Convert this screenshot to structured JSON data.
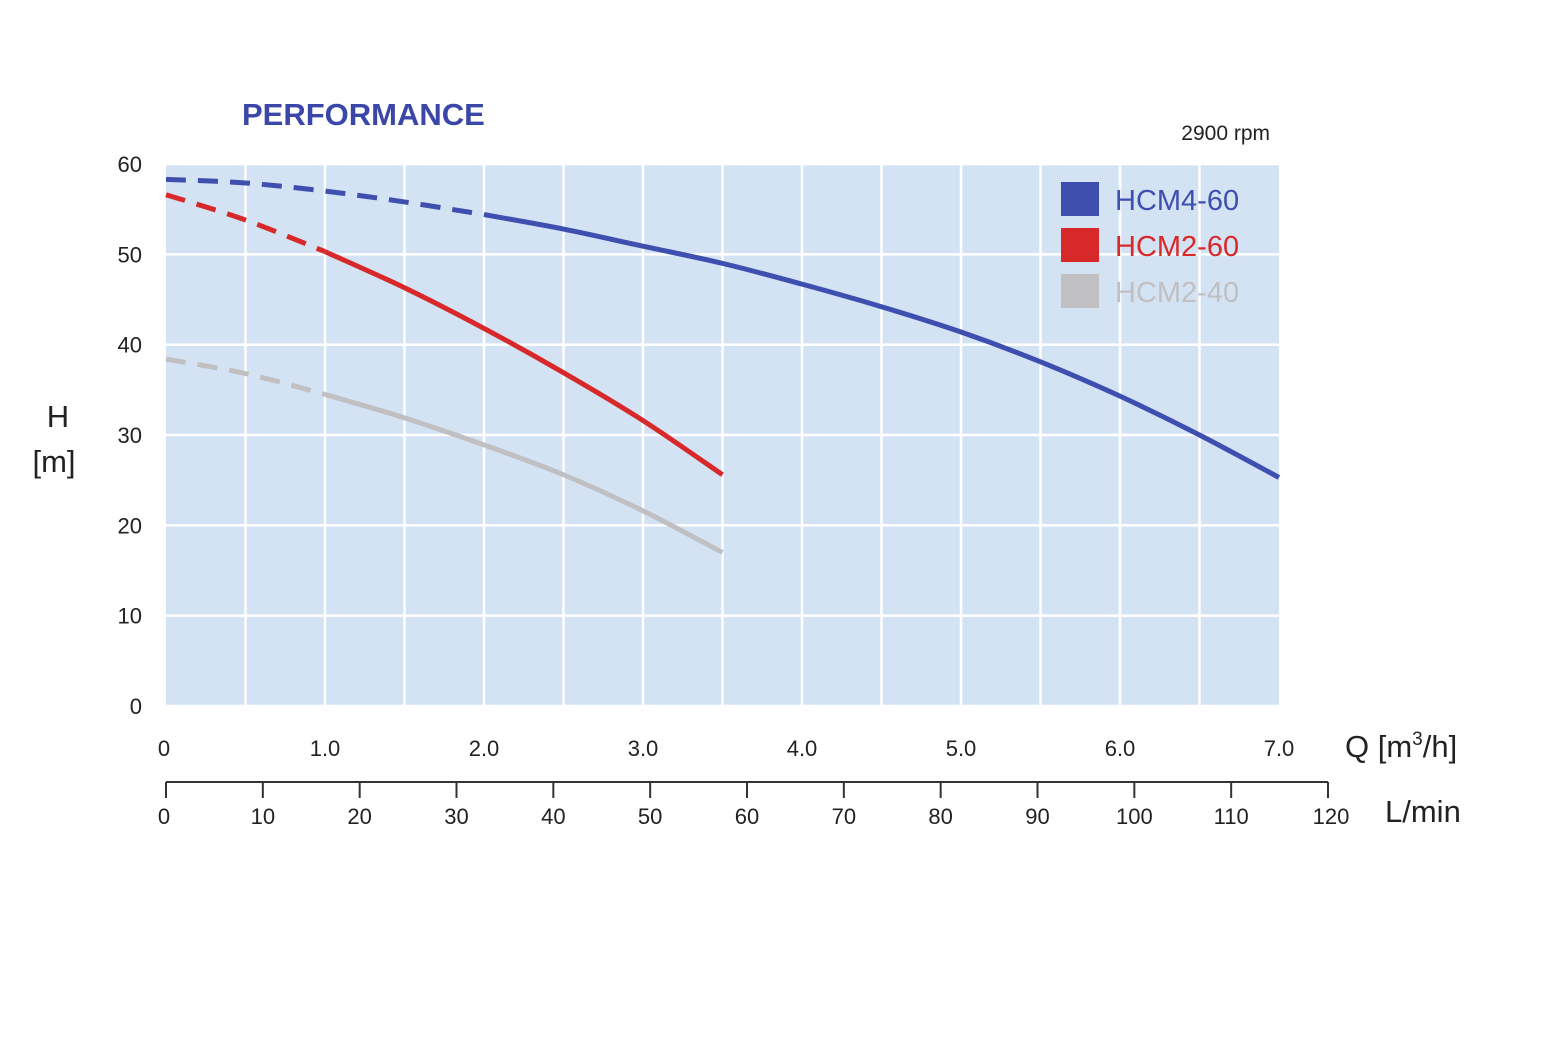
{
  "chart_data": {
    "type": "line",
    "title": "PERFORMANCE",
    "subtitle": "2900 rpm",
    "ylabel_line1": "H",
    "ylabel_line2": "[m]",
    "xlabel_base": "Q [m",
    "xlabel_sup": "3",
    "xlabel_end": "/h]",
    "x2label": "L/min",
    "xlim": [
      0,
      7
    ],
    "ylim": [
      0,
      60
    ],
    "grid": true,
    "legend_position": "top-right",
    "y_ticks": [
      "0",
      "10",
      "20",
      "30",
      "40",
      "50",
      "60"
    ],
    "x_ticks": [
      {
        "value": 0,
        "label": "0"
      },
      {
        "value": 1,
        "label": "1.0"
      },
      {
        "value": 2,
        "label": "2.0"
      },
      {
        "value": 3,
        "label": "3.0"
      },
      {
        "value": 4,
        "label": "4.0"
      },
      {
        "value": 5,
        "label": "5.0"
      },
      {
        "value": 6,
        "label": "6.0"
      },
      {
        "value": 7,
        "label": "7.0"
      }
    ],
    "x2_ticks": [
      "0",
      "10",
      "20",
      "30",
      "40",
      "50",
      "60",
      "70",
      "80",
      "90",
      "100",
      "110",
      "120"
    ],
    "colors": {
      "plot_bg": "#d3e3f3",
      "grid": "#ffffff",
      "title": "#3a46a8",
      "text": "#222222"
    },
    "series": [
      {
        "name": "HCM4-60",
        "color": "#3f4fb0",
        "dashed_until": 2.0,
        "points": [
          [
            0,
            58.3
          ],
          [
            0.5,
            57.9
          ],
          [
            1.0,
            57.0
          ],
          [
            1.5,
            55.8
          ],
          [
            2.0,
            54.4
          ],
          [
            2.5,
            52.8
          ],
          [
            3.0,
            50.9
          ],
          [
            3.5,
            49.0
          ],
          [
            4.0,
            46.7
          ],
          [
            4.5,
            44.2
          ],
          [
            5.0,
            41.4
          ],
          [
            5.5,
            38.1
          ],
          [
            6.0,
            34.3
          ],
          [
            6.5,
            30.0
          ],
          [
            7.0,
            25.3
          ]
        ]
      },
      {
        "name": "HCM2-60",
        "color": "#d8292a",
        "dashed_until": 1.0,
        "points": [
          [
            0,
            56.6
          ],
          [
            0.5,
            53.8
          ],
          [
            1.0,
            50.3
          ],
          [
            1.5,
            46.3
          ],
          [
            2.0,
            41.8
          ],
          [
            2.5,
            36.9
          ],
          [
            3.0,
            31.6
          ],
          [
            3.5,
            25.6
          ]
        ]
      },
      {
        "name": "HCM2-40",
        "color": "#c0c0c3",
        "dashed_until": 1.0,
        "points": [
          [
            0,
            38.4
          ],
          [
            0.5,
            36.8
          ],
          [
            1.0,
            34.5
          ],
          [
            1.5,
            31.9
          ],
          [
            2.0,
            28.9
          ],
          [
            2.5,
            25.6
          ],
          [
            3.0,
            21.6
          ],
          [
            3.5,
            17.0
          ]
        ]
      }
    ]
  }
}
